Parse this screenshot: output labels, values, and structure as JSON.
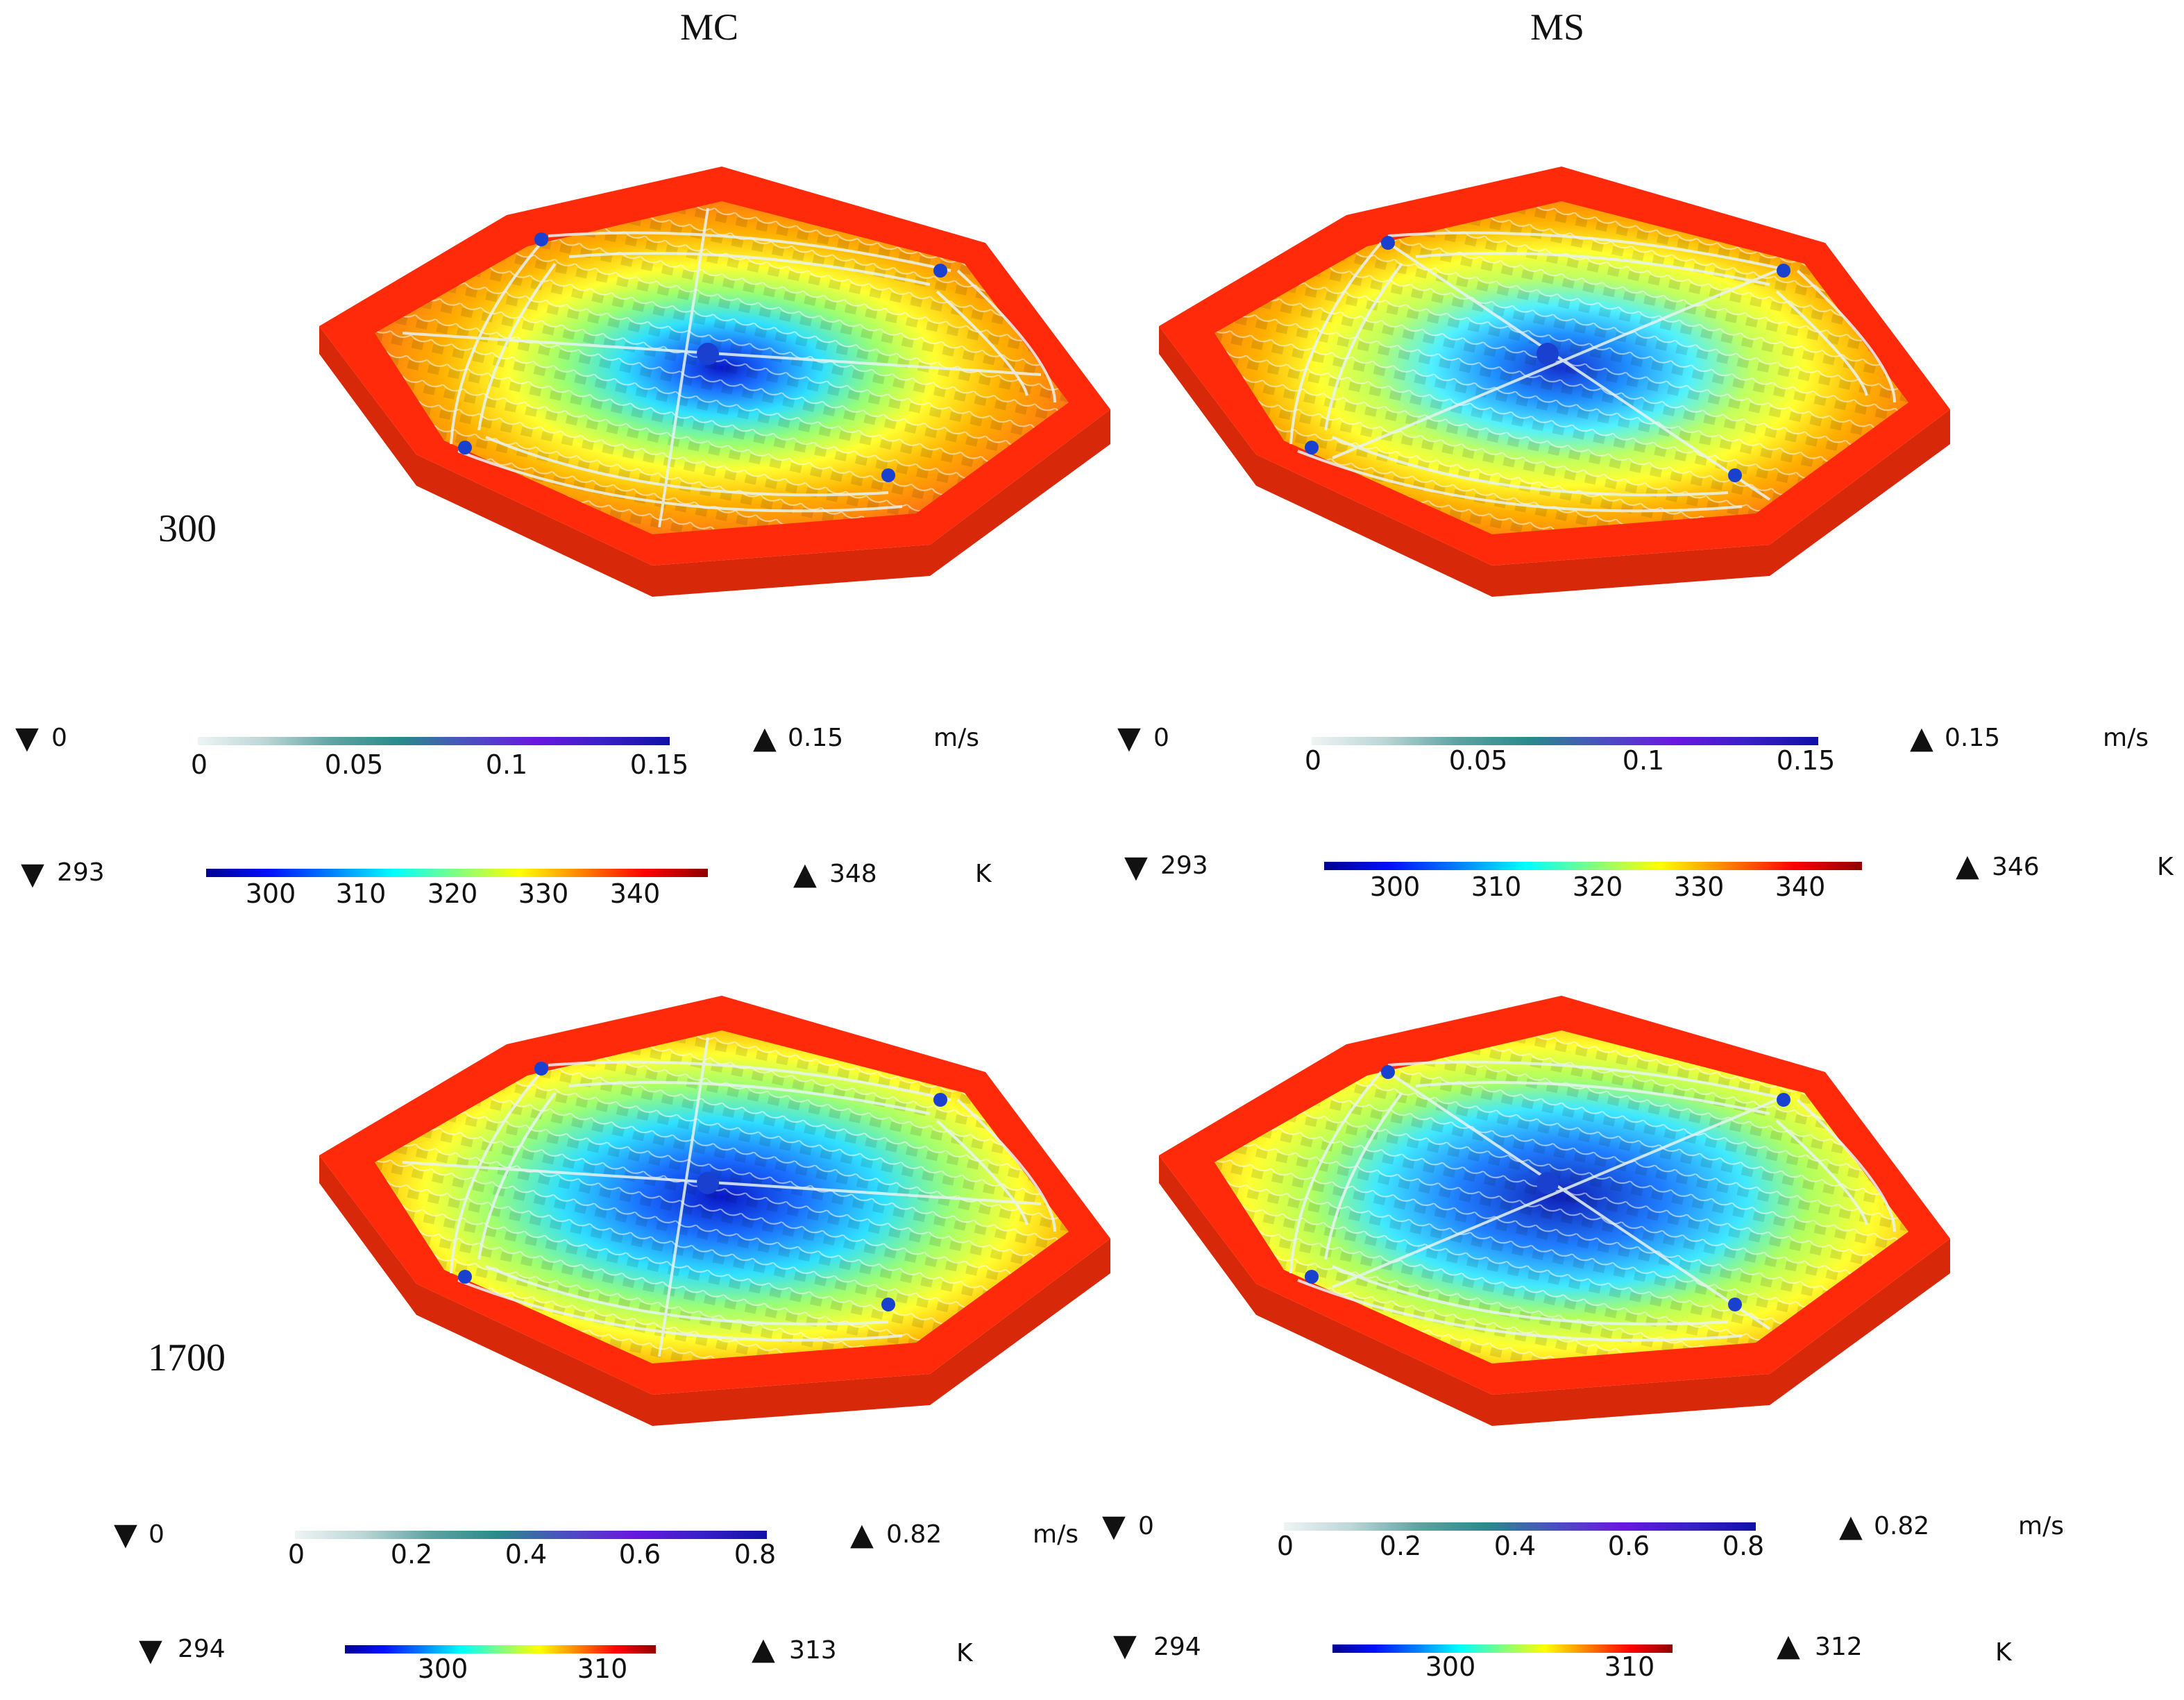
{
  "columns": {
    "left": "MC",
    "right": "MS"
  },
  "rows": {
    "top": "300",
    "bottom": "1700"
  },
  "panels": {
    "mc_300": {
      "vel": {
        "min": "0",
        "max": "0.15",
        "unit": "m/s",
        "ticks": [
          "0",
          "0.05",
          "0.1",
          "0.15"
        ]
      },
      "temp": {
        "min": "293",
        "max": "348",
        "unit": "K",
        "ticks": [
          "300",
          "310",
          "320",
          "330",
          "340"
        ]
      }
    },
    "ms_300": {
      "vel": {
        "min": "0",
        "max": "0.15",
        "unit": "m/s",
        "ticks": [
          "0",
          "0.05",
          "0.1",
          "0.15"
        ]
      },
      "temp": {
        "min": "293",
        "max": "346",
        "unit": "K",
        "ticks": [
          "300",
          "310",
          "320",
          "330",
          "340"
        ]
      }
    },
    "mc_1700": {
      "vel": {
        "min": "0",
        "max": "0.82",
        "unit": "m/s",
        "ticks": [
          "0",
          "0.2",
          "0.4",
          "0.6",
          "0.8"
        ]
      },
      "temp": {
        "min": "294",
        "max": "313",
        "unit": "K",
        "ticks": [
          "300",
          "310"
        ]
      }
    },
    "ms_1700": {
      "vel": {
        "min": "0",
        "max": "0.82",
        "unit": "m/s",
        "ticks": [
          "0",
          "0.2",
          "0.4",
          "0.6",
          "0.8"
        ]
      },
      "temp": {
        "min": "294",
        "max": "312",
        "unit": "K",
        "ticks": [
          "300",
          "310"
        ]
      }
    }
  },
  "colors": {
    "hot": "#ff2a0a",
    "warm": "#ff8a00",
    "mid": "#ffff30",
    "cool": "#30e0ff",
    "cold": "#1020c0",
    "stream": "#e8f4f4"
  }
}
